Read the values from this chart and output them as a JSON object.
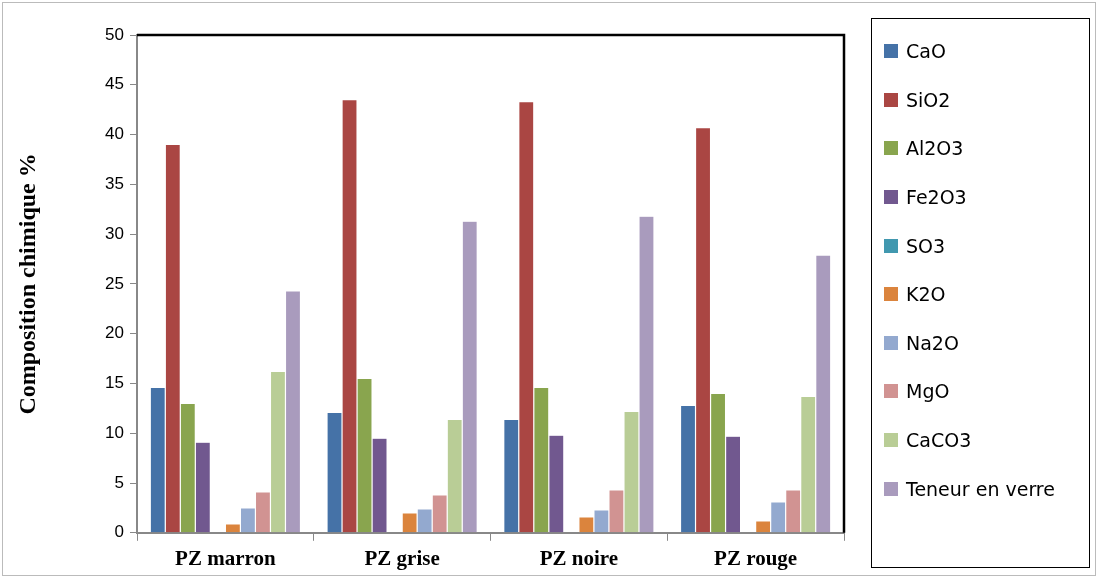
{
  "chart_data": {
    "type": "bar",
    "ylabel": "Composition chimique %",
    "categories": [
      "PZ marron",
      "PZ grise",
      "PZ noire",
      "PZ rouge"
    ],
    "series": [
      {
        "name": "CaO",
        "color": "#4572a7",
        "values": [
          14.6,
          12.1,
          11.4,
          12.8
        ]
      },
      {
        "name": "SiO2",
        "color": "#aa4643",
        "values": [
          39.0,
          43.5,
          43.3,
          40.7
        ]
      },
      {
        "name": "Al2O3",
        "color": "#89a54e",
        "values": [
          13.0,
          15.5,
          14.6,
          14.0
        ]
      },
      {
        "name": "Fe2O3",
        "color": "#71588f",
        "values": [
          9.1,
          9.5,
          9.8,
          9.7
        ]
      },
      {
        "name": "SO3",
        "color": "#4198af",
        "values": [
          0,
          0,
          0,
          0
        ]
      },
      {
        "name": "K2O",
        "color": "#db843d",
        "values": [
          0.9,
          2.0,
          1.6,
          1.2
        ]
      },
      {
        "name": "Na2O",
        "color": "#93a9cf",
        "values": [
          2.5,
          2.4,
          2.3,
          3.1
        ]
      },
      {
        "name": "MgO",
        "color": "#d19392",
        "values": [
          4.1,
          3.8,
          4.3,
          4.3
        ]
      },
      {
        "name": "CaCO3",
        "color": "#b9cd96",
        "values": [
          16.2,
          11.4,
          12.2,
          13.7
        ]
      },
      {
        "name": "Teneur en verre",
        "color": "#a99bbd",
        "values": [
          24.3,
          31.3,
          31.8,
          27.9
        ]
      }
    ],
    "ylim": [
      0,
      50
    ],
    "yticks": [
      0,
      5,
      10,
      15,
      20,
      25,
      30,
      35,
      40,
      45,
      50
    ],
    "grid": false,
    "legend": "right"
  }
}
